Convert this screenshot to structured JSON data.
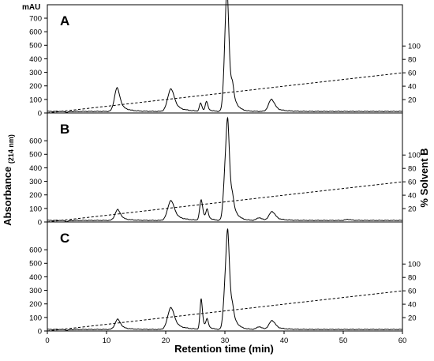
{
  "chart_data": {
    "type": "line",
    "x_axis": {
      "label": "Retention time (min)",
      "range": [
        0,
        60
      ],
      "ticks": [
        "0",
        "10",
        "20",
        "30",
        "40",
        "50",
        "60"
      ]
    },
    "y_left": {
      "label": "Absorbance",
      "label_subscript": "(214 nm)",
      "unit": "mAU",
      "range": [
        0,
        800
      ]
    },
    "y_right": {
      "label": "% Solvent B",
      "range": [
        0,
        105
      ]
    },
    "panels": [
      {
        "label": "A",
        "y_left_ticks": [
          "0",
          "100",
          "200",
          "300",
          "400",
          "500",
          "600",
          "700"
        ],
        "y_right_ticks": [
          "20",
          "40",
          "60",
          "80",
          "100"
        ],
        "peaks": [
          {
            "rt": 3.3,
            "height": -6,
            "width": 0.3
          },
          {
            "rt": 11.8,
            "height": 175,
            "width": 0.45
          },
          {
            "rt": 20.9,
            "height": 168,
            "width": 0.55
          },
          {
            "rt": 25.9,
            "height": 60,
            "width": 0.2
          },
          {
            "rt": 26.9,
            "height": 70,
            "width": 0.2
          },
          {
            "rt": 30.0,
            "height": 250,
            "width": 0.3
          },
          {
            "rt": 30.4,
            "height": 780,
            "width": 0.3
          },
          {
            "rt": 31.3,
            "height": 95,
            "width": 0.2
          },
          {
            "rt": 37.9,
            "height": 90,
            "width": 0.5
          }
        ]
      },
      {
        "label": "B",
        "y_left_ticks": [
          "0",
          "100",
          "200",
          "300",
          "400",
          "500",
          "600"
        ],
        "y_right_ticks": [
          "20",
          "40",
          "60",
          "80",
          "100"
        ],
        "peaks": [
          {
            "rt": 3.3,
            "height": -8,
            "width": 0.3
          },
          {
            "rt": 11.9,
            "height": 80,
            "width": 0.45
          },
          {
            "rt": 20.9,
            "height": 148,
            "width": 0.55
          },
          {
            "rt": 26.0,
            "height": 150,
            "width": 0.25
          },
          {
            "rt": 27.0,
            "height": 70,
            "width": 0.2
          },
          {
            "rt": 30.0,
            "height": 270,
            "width": 0.3
          },
          {
            "rt": 30.5,
            "height": 650,
            "width": 0.3
          },
          {
            "rt": 31.3,
            "height": 75,
            "width": 0.2
          },
          {
            "rt": 35.8,
            "height": 20,
            "width": 0.4
          },
          {
            "rt": 38.0,
            "height": 65,
            "width": 0.5
          },
          {
            "rt": 50.8,
            "height": 8,
            "width": 0.4
          }
        ]
      },
      {
        "label": "C",
        "y_left_ticks": [
          "0",
          "100",
          "200",
          "300",
          "400",
          "500",
          "600"
        ],
        "y_right_ticks": [
          "20",
          "40",
          "60",
          "80",
          "100"
        ],
        "peaks": [
          {
            "rt": 3.3,
            "height": -6,
            "width": 0.3
          },
          {
            "rt": 11.9,
            "height": 75,
            "width": 0.45
          },
          {
            "rt": 20.9,
            "height": 163,
            "width": 0.55
          },
          {
            "rt": 26.0,
            "height": 225,
            "width": 0.2
          },
          {
            "rt": 27.0,
            "height": 65,
            "width": 0.2
          },
          {
            "rt": 30.0,
            "height": 230,
            "width": 0.3
          },
          {
            "rt": 30.5,
            "height": 650,
            "width": 0.3
          },
          {
            "rt": 31.3,
            "height": 70,
            "width": 0.2
          },
          {
            "rt": 35.8,
            "height": 20,
            "width": 0.4
          },
          {
            "rt": 38.0,
            "height": 65,
            "width": 0.5
          }
        ]
      }
    ],
    "gradient_line": {
      "x": [
        0,
        60
      ],
      "y": [
        0,
        60
      ],
      "style": "dashed"
    }
  }
}
